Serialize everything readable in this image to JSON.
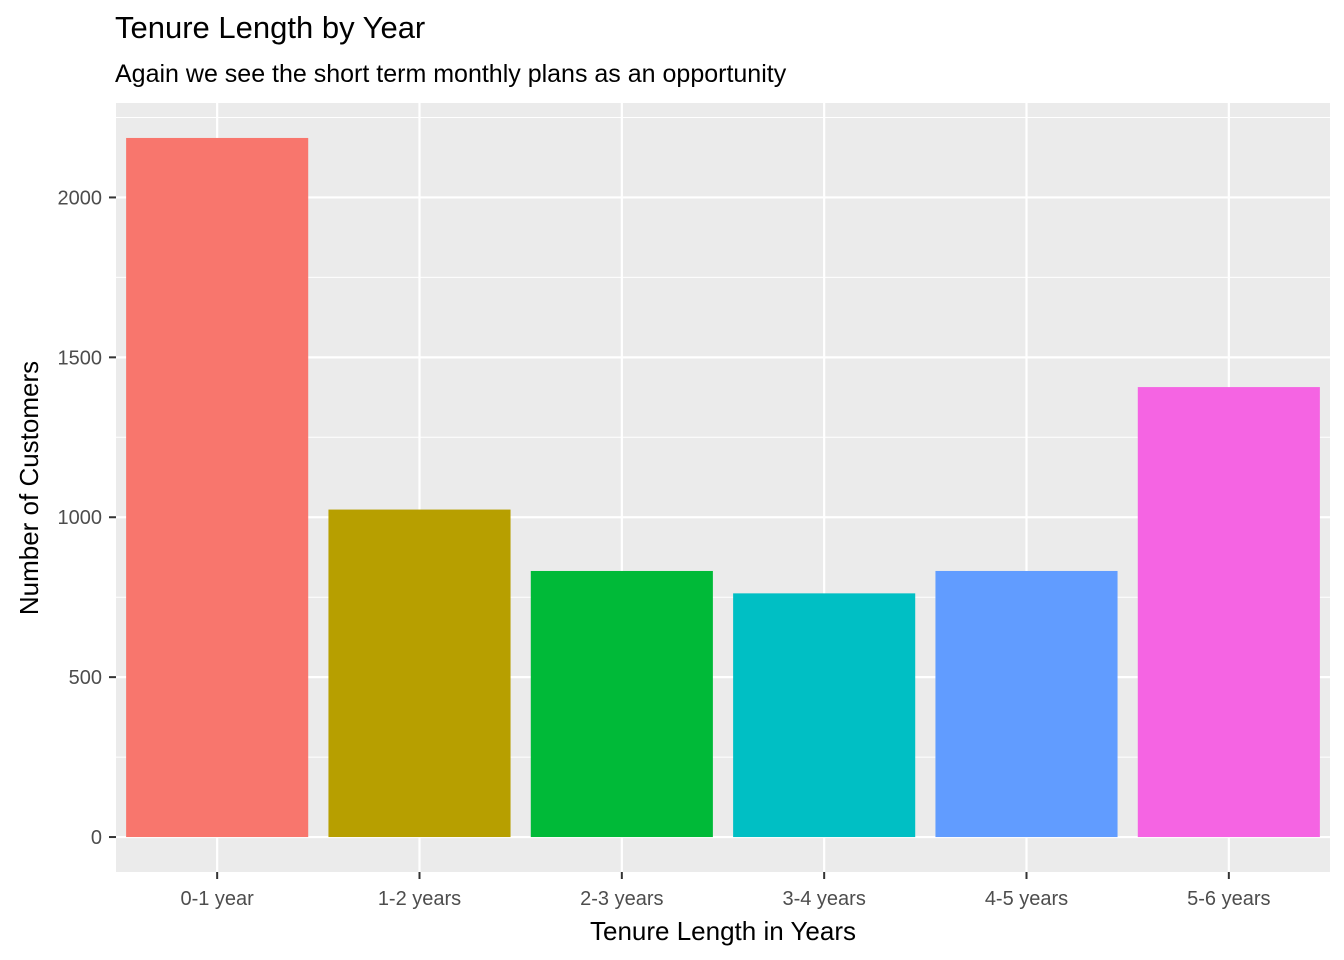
{
  "chart_data": {
    "type": "bar",
    "title": "Tenure Length by Year",
    "subtitle": "Again we see the short term monthly plans as an opportunity",
    "xlabel": "Tenure Length in Years",
    "ylabel": "Number of Customers",
    "categories": [
      "0-1 year",
      "1-2 years",
      "2-3 years",
      "3-4 years",
      "4-5 years",
      "5-6 years"
    ],
    "values": [
      2186,
      1024,
      832,
      762,
      832,
      1407
    ],
    "colors": [
      "#F8766D",
      "#B79F00",
      "#00BA38",
      "#00BFC4",
      "#619CFF",
      "#F564E3"
    ],
    "ylim": [
      -109.3,
      2295.3
    ],
    "yticks": [
      0,
      500,
      1000,
      1500,
      2000
    ],
    "ytick_labels": [
      "0",
      "500",
      "1000",
      "1500",
      "2000"
    ],
    "panel_background": "#EBEBEB",
    "grid": true,
    "legend": "none"
  }
}
